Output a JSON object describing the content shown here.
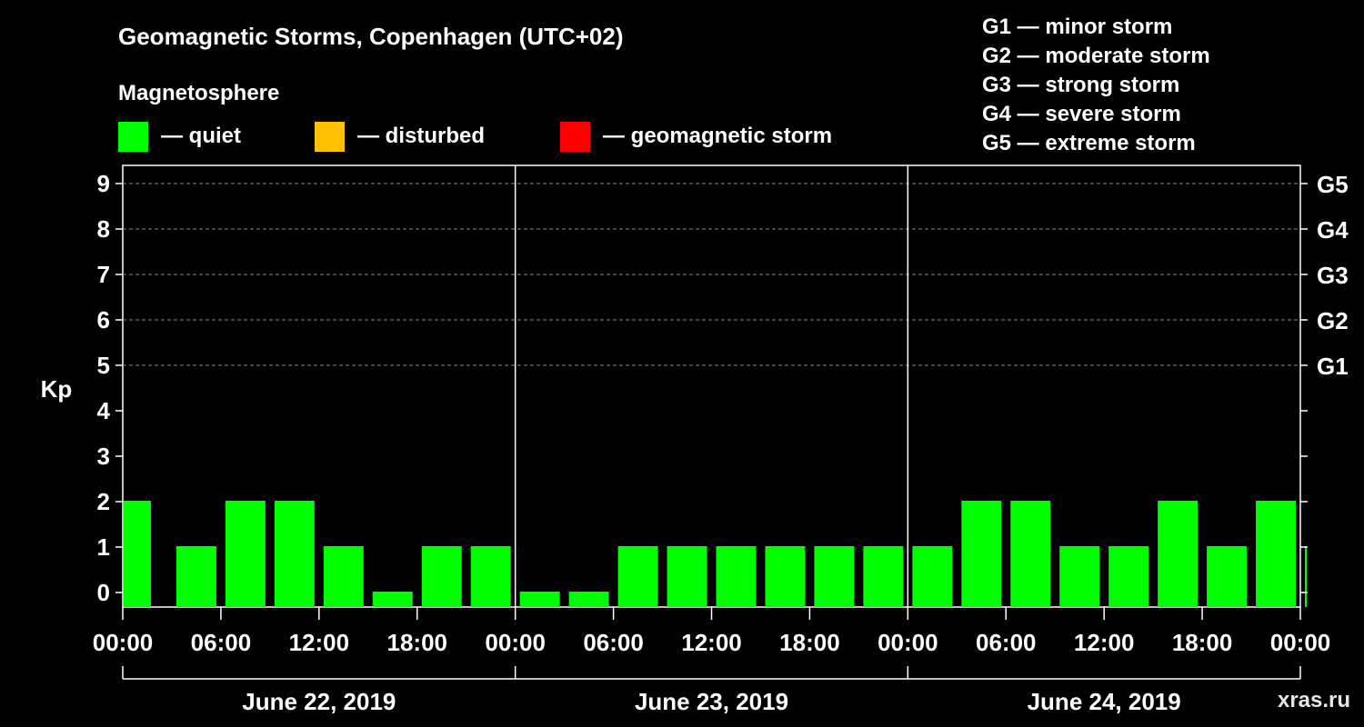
{
  "chart_data": {
    "type": "bar",
    "title": "Geomagnetic Storms, Copenhagen (UTC+02)",
    "ylabel": "Kp",
    "ylim": [
      0,
      9
    ],
    "yticks": [
      "0",
      "1",
      "2",
      "3",
      "4",
      "5",
      "6",
      "7",
      "8",
      "9"
    ],
    "g_scale_ticks": [
      {
        "kp": 5,
        "label": "G1"
      },
      {
        "kp": 6,
        "label": "G2"
      },
      {
        "kp": 7,
        "label": "G3"
      },
      {
        "kp": 8,
        "label": "G4"
      },
      {
        "kp": 9,
        "label": "G5"
      }
    ],
    "xticks": [
      "00:00",
      "06:00",
      "12:00",
      "18:00",
      "00:00",
      "06:00",
      "12:00",
      "18:00",
      "00:00",
      "06:00",
      "12:00",
      "18:00",
      "00:00"
    ],
    "days": [
      "June 22, 2019",
      "June 23, 2019",
      "June 24, 2019"
    ],
    "grid": "dashed horizontal at Kp 5-9",
    "bars": [
      {
        "start": "2019-06-22 00:00",
        "end": "2019-06-22 02:00",
        "kp": 2
      },
      {
        "start": "2019-06-22 03:00",
        "end": "2019-06-22 06:00",
        "kp": 1
      },
      {
        "start": "2019-06-22 06:00",
        "end": "2019-06-22 09:00",
        "kp": 2
      },
      {
        "start": "2019-06-22 09:00",
        "end": "2019-06-22 12:00",
        "kp": 2
      },
      {
        "start": "2019-06-22 12:00",
        "end": "2019-06-22 15:00",
        "kp": 1
      },
      {
        "start": "2019-06-22 15:00",
        "end": "2019-06-22 18:00",
        "kp": 0
      },
      {
        "start": "2019-06-22 18:00",
        "end": "2019-06-22 21:00",
        "kp": 1
      },
      {
        "start": "2019-06-22 21:00",
        "end": "2019-06-23 00:00",
        "kp": 1
      },
      {
        "start": "2019-06-23 00:00",
        "end": "2019-06-23 03:00",
        "kp": 0
      },
      {
        "start": "2019-06-23 03:00",
        "end": "2019-06-23 06:00",
        "kp": 0
      },
      {
        "start": "2019-06-23 06:00",
        "end": "2019-06-23 09:00",
        "kp": 1
      },
      {
        "start": "2019-06-23 09:00",
        "end": "2019-06-23 12:00",
        "kp": 1
      },
      {
        "start": "2019-06-23 12:00",
        "end": "2019-06-23 15:00",
        "kp": 1
      },
      {
        "start": "2019-06-23 15:00",
        "end": "2019-06-23 18:00",
        "kp": 1
      },
      {
        "start": "2019-06-23 18:00",
        "end": "2019-06-23 21:00",
        "kp": 1
      },
      {
        "start": "2019-06-23 21:00",
        "end": "2019-06-24 00:00",
        "kp": 1
      },
      {
        "start": "2019-06-24 00:00",
        "end": "2019-06-24 03:00",
        "kp": 1
      },
      {
        "start": "2019-06-24 03:00",
        "end": "2019-06-24 06:00",
        "kp": 2
      },
      {
        "start": "2019-06-24 06:00",
        "end": "2019-06-24 09:00",
        "kp": 2
      },
      {
        "start": "2019-06-24 09:00",
        "end": "2019-06-24 12:00",
        "kp": 1
      },
      {
        "start": "2019-06-24 12:00",
        "end": "2019-06-24 15:00",
        "kp": 1
      },
      {
        "start": "2019-06-24 15:00",
        "end": "2019-06-24 18:00",
        "kp": 2
      },
      {
        "start": "2019-06-24 18:00",
        "end": "2019-06-24 21:00",
        "kp": 1
      },
      {
        "start": "2019-06-24 21:00",
        "end": "2019-06-25 00:00",
        "kp": 2
      },
      {
        "start": "2019-06-25 00:00",
        "end": "2019-06-25 00:15",
        "kp": 1
      }
    ],
    "legend": {
      "heading": "Magnetosphere",
      "items": [
        {
          "label": "— quiet",
          "color": "#00ff00"
        },
        {
          "label": "— disturbed",
          "color": "#ffc000"
        },
        {
          "label": "— geomagnetic storm",
          "color": "#ff0000"
        }
      ],
      "scale": [
        "G1 — minor storm",
        "G2 — moderate storm",
        "G3 — strong storm",
        "G4 — severe storm",
        "G5 — extreme storm"
      ]
    },
    "watermark": "xras.ru"
  }
}
